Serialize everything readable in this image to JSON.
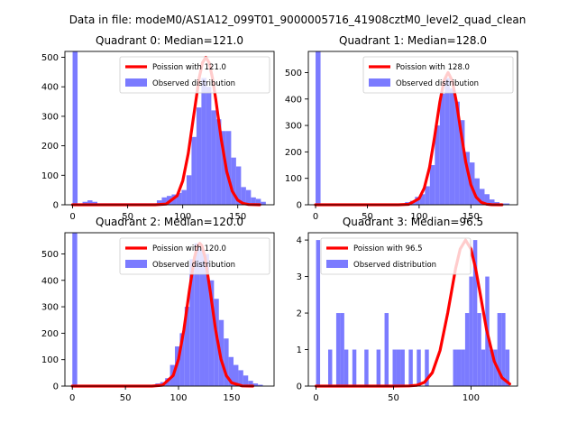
{
  "suptitle": "Data in file: modeM0/AS1A12_099T01_9000005716_41908cztM0_level2_quad_clean",
  "colors": {
    "hist": "#7b7bff",
    "curve": "#ff0000",
    "axis": "#000000"
  },
  "chart_data": [
    {
      "type": "bar",
      "title": "Quadrant 0: Median=121.0",
      "xlim": [
        -7,
        183
      ],
      "ylim": [
        0,
        520
      ],
      "xticks": [
        0,
        50,
        100,
        150
      ],
      "yticks": [
        0,
        100,
        200,
        300,
        400,
        500
      ],
      "legend": {
        "placement": "top-right",
        "line_label": "Poission with 121.0",
        "bar_label": "Observed distribution"
      },
      "hist": {
        "bin_width": 4.5,
        "x": [
          0,
          4.5,
          9,
          13.5,
          18,
          22.5,
          27,
          31.5,
          36,
          40.5,
          45,
          49.5,
          54,
          58.5,
          63,
          67.5,
          72,
          76.5,
          81,
          85.5,
          90,
          94.5,
          99,
          103.5,
          108,
          112.5,
          117,
          121.5,
          126,
          130.5,
          135,
          139.5,
          144,
          148.5,
          153,
          157.5,
          162,
          166.5,
          171
        ],
        "values": [
          520,
          0,
          10,
          15,
          10,
          5,
          5,
          5,
          5,
          5,
          5,
          5,
          5,
          5,
          5,
          5,
          5,
          15,
          25,
          30,
          35,
          40,
          50,
          100,
          230,
          330,
          430,
          400,
          320,
          290,
          250,
          250,
          160,
          130,
          60,
          50,
          25,
          20,
          10
        ]
      },
      "poisson": {
        "mean": 121,
        "scale": 500,
        "x": [
          0,
          25,
          50,
          75,
          85,
          95,
          100,
          105,
          110,
          115,
          118,
          121,
          124,
          127,
          130,
          135,
          140,
          145,
          150,
          155,
          160,
          170
        ]
      }
    },
    {
      "type": "bar",
      "title": "Quadrant 1: Median=128.0",
      "xlim": [
        -7,
        195
      ],
      "ylim": [
        0,
        580
      ],
      "xticks": [
        0,
        50,
        100,
        150
      ],
      "yticks": [
        0,
        100,
        200,
        300,
        400,
        500
      ],
      "legend": {
        "placement": "top-right",
        "line_label": "Poission with 128.0",
        "bar_label": "Observed distribution"
      },
      "hist": {
        "bin_width": 4.8,
        "x": [
          0,
          4.8,
          9.6,
          14.4,
          19.2,
          24,
          28.8,
          33.6,
          38.4,
          43.2,
          48,
          52.8,
          57.6,
          62.4,
          67.2,
          72,
          76.8,
          81.6,
          86.4,
          91.2,
          96,
          100.8,
          105.6,
          110.4,
          115.2,
          120,
          124.8,
          129.6,
          134.4,
          139.2,
          144,
          148.8,
          153.6,
          158.4,
          163.2,
          168,
          172.8,
          177.6,
          182.4
        ],
        "values": [
          580,
          0,
          5,
          5,
          5,
          5,
          5,
          5,
          5,
          5,
          5,
          5,
          5,
          5,
          5,
          5,
          5,
          5,
          10,
          15,
          30,
          40,
          70,
          150,
          300,
          420,
          480,
          440,
          390,
          320,
          200,
          160,
          100,
          60,
          40,
          20,
          10,
          5,
          5
        ]
      },
      "poisson": {
        "mean": 128,
        "scale": 500,
        "x": [
          0,
          25,
          50,
          80,
          90,
          100,
          105,
          110,
          115,
          120,
          124,
          128,
          132,
          136,
          140,
          145,
          150,
          155,
          160,
          165,
          170,
          180
        ]
      }
    },
    {
      "type": "bar",
      "title": "Quadrant 2: Median=120.0",
      "xlim": [
        -7,
        190
      ],
      "ylim": [
        0,
        580
      ],
      "xticks": [
        0,
        50,
        100,
        150
      ],
      "yticks": [
        0,
        100,
        200,
        300,
        400,
        500
      ],
      "legend": {
        "placement": "top-right",
        "line_label": "Poission with 120.0",
        "bar_label": "Observed distribution"
      },
      "hist": {
        "bin_width": 4.6,
        "x": [
          0,
          4.6,
          9.2,
          13.8,
          18.4,
          23,
          27.6,
          32.2,
          36.8,
          41.4,
          46,
          50.6,
          55.2,
          59.8,
          64.4,
          69,
          73.6,
          78.2,
          82.8,
          87.4,
          92,
          96.6,
          101.2,
          105.8,
          110.4,
          115,
          119.6,
          124.2,
          128.8,
          133.4,
          138,
          142.6,
          147.2,
          151.8,
          156.4,
          161,
          165.6,
          170.2,
          174.8
        ],
        "values": [
          580,
          0,
          5,
          5,
          5,
          5,
          5,
          5,
          5,
          5,
          5,
          5,
          5,
          5,
          5,
          5,
          5,
          10,
          15,
          30,
          80,
          150,
          200,
          300,
          480,
          540,
          520,
          500,
          400,
          330,
          250,
          180,
          110,
          80,
          60,
          40,
          20,
          10,
          5
        ]
      },
      "poisson": {
        "mean": 120,
        "scale": 540,
        "x": [
          0,
          25,
          50,
          75,
          85,
          95,
          100,
          105,
          110,
          115,
          118,
          120,
          122,
          125,
          130,
          135,
          140,
          145,
          150,
          160,
          170
        ]
      }
    },
    {
      "type": "bar",
      "title": "Quadrant 3: Median=96.5",
      "xlim": [
        -5,
        130
      ],
      "ylim": [
        0,
        4.2
      ],
      "xticks": [
        0,
        50,
        100
      ],
      "yticks": [
        0,
        1,
        2,
        3,
        4
      ],
      "legend": {
        "placement": "top-left",
        "line_label": "Poission with 96.5",
        "bar_label": "Observed distribution"
      },
      "hist": {
        "bin_width": 2.6,
        "x": [
          0,
          2.6,
          5.2,
          7.8,
          10.4,
          13,
          15.6,
          18.2,
          20.8,
          23.4,
          26,
          28.6,
          31.2,
          33.8,
          36.4,
          39,
          41.6,
          44.2,
          46.8,
          49.4,
          52,
          54.6,
          57.2,
          59.8,
          62.4,
          65,
          67.6,
          70.2,
          72.8,
          75.4,
          78,
          80.6,
          83.2,
          85.8,
          88.4,
          91,
          93.6,
          96.2,
          98.8,
          101.4,
          104,
          106.6,
          109.2,
          111.8,
          114.4,
          117,
          119.6,
          122.2
        ],
        "values": [
          4,
          0,
          0,
          1,
          0,
          2,
          2,
          1,
          0,
          1,
          0,
          0,
          1,
          0,
          0,
          1,
          0,
          2,
          0,
          1,
          1,
          1,
          0,
          1,
          0,
          1,
          0,
          1,
          0,
          0,
          0,
          0,
          0,
          0,
          1,
          1,
          1,
          2,
          3,
          4,
          2,
          1,
          3,
          1,
          1,
          2,
          2,
          1
        ]
      },
      "poisson": {
        "mean": 96.5,
        "scale": 4.0,
        "x": [
          0,
          25,
          50,
          60,
          65,
          70,
          75,
          80,
          85,
          90,
          93,
          96.5,
          100,
          103,
          106,
          110,
          115,
          120,
          125
        ]
      }
    }
  ]
}
